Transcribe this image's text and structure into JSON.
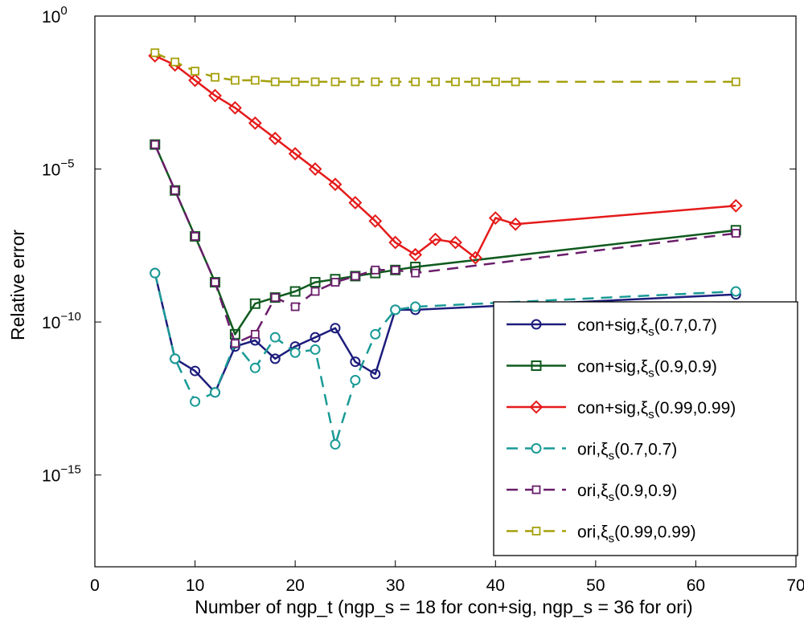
{
  "chart_data": {
    "type": "line",
    "title": "",
    "xlabel": "Number of ngp_t (ngp_s = 18 for con+sig, ngp_s = 36 for ori)",
    "ylabel": "Relative error",
    "xlim": [
      0,
      70
    ],
    "ylim_log10": [
      -18,
      0
    ],
    "yscale": "log",
    "x_ticks": [
      0,
      10,
      20,
      30,
      40,
      50,
      60,
      70
    ],
    "x_tick_labels": [
      "0",
      "10",
      "20",
      "30",
      "40",
      "50",
      "60",
      "70"
    ],
    "y_ticks_log10": [
      0,
      -5,
      -10,
      -15
    ],
    "y_tick_base": "10",
    "y_tick_exponents": [
      "0",
      "−5",
      "−10",
      "−15"
    ],
    "legend_position": "bottom-right",
    "series": [
      {
        "name_main": "con+sig,ξ",
        "name_sub": "s",
        "name_tail": "(0.7,0.7)",
        "color": "#1c1c7c",
        "line_style": "solid",
        "marker": "circle",
        "x": [
          6,
          8,
          10,
          12,
          14,
          16,
          18,
          20,
          22,
          24,
          26,
          28,
          30,
          32,
          64
        ],
        "log10_y": [
          -8.4,
          -11.2,
          -11.6,
          -12.3,
          -10.8,
          -10.6,
          -11.2,
          -10.8,
          -10.5,
          -10.2,
          -11.3,
          -11.7,
          -9.6,
          -9.6,
          -9.1
        ]
      },
      {
        "name_main": "con+sig,ξ",
        "name_sub": "s",
        "name_tail": "(0.9,0.9)",
        "color": "#0f5a1e",
        "line_style": "solid",
        "marker": "square",
        "x": [
          6,
          8,
          10,
          12,
          14,
          16,
          18,
          20,
          22,
          24,
          26,
          28,
          30,
          32,
          64
        ],
        "log10_y": [
          -4.2,
          -5.7,
          -7.2,
          -8.7,
          -10.4,
          -9.4,
          -9.2,
          -9.0,
          -8.7,
          -8.6,
          -8.5,
          -8.4,
          -8.3,
          -8.2,
          -7.0
        ]
      },
      {
        "name_main": "con+sig,ξ",
        "name_sub": "s",
        "name_tail": "(0.99,0.99)",
        "color": "#e51a1a",
        "line_style": "solid",
        "marker": "diamond",
        "x": [
          6,
          8,
          10,
          12,
          14,
          16,
          18,
          20,
          22,
          24,
          26,
          28,
          30,
          32,
          34,
          36,
          38,
          40,
          42,
          64
        ],
        "log10_y": [
          -1.3,
          -1.6,
          -2.1,
          -2.6,
          -3.0,
          -3.5,
          -4.0,
          -4.5,
          -5.0,
          -5.5,
          -6.1,
          -6.7,
          -7.4,
          -7.8,
          -7.3,
          -7.4,
          -7.9,
          -6.6,
          -6.8,
          -6.2
        ]
      },
      {
        "name_main": "ori,ξ",
        "name_sub": "s",
        "name_tail": "(0.7,0.7)",
        "color": "#1a9a96",
        "line_style": "dashed",
        "marker": "circle-open",
        "x": [
          6,
          8,
          10,
          12,
          14,
          16,
          18,
          20,
          22,
          24,
          26,
          28,
          30,
          32,
          64
        ],
        "log10_y": [
          -8.4,
          -11.2,
          -12.6,
          -12.3,
          -10.7,
          -11.5,
          -10.5,
          -11.0,
          -10.9,
          -14.0,
          -11.9,
          -10.4,
          -9.6,
          -9.5,
          -9.0
        ]
      },
      {
        "name_main": "ori,ξ",
        "name_sub": "s",
        "name_tail": "(0.9,0.9)",
        "color": "#6a1d6a",
        "line_style": "dashed",
        "marker": "square-open",
        "x": [
          6,
          8,
          10,
          12,
          14,
          16,
          18,
          20,
          22,
          24,
          26,
          28,
          30,
          32,
          64
        ],
        "log10_y": [
          -4.2,
          -5.7,
          -7.2,
          -8.7,
          -10.7,
          -10.4,
          -9.2,
          -9.5,
          -9.0,
          -8.7,
          -8.5,
          -8.3,
          -8.3,
          -8.4,
          -7.1
        ]
      },
      {
        "name_main": "ori,ξ",
        "name_sub": "s",
        "name_tail": "(0.99,0.99)",
        "color": "#a5a00c",
        "line_style": "dashed",
        "marker": "square-open",
        "x": [
          6,
          8,
          10,
          12,
          14,
          16,
          18,
          20,
          22,
          24,
          26,
          28,
          30,
          32,
          34,
          36,
          38,
          40,
          42,
          64
        ],
        "log10_y": [
          -1.2,
          -1.5,
          -1.8,
          -2.0,
          -2.1,
          -2.1,
          -2.15,
          -2.15,
          -2.15,
          -2.15,
          -2.15,
          -2.15,
          -2.15,
          -2.15,
          -2.15,
          -2.15,
          -2.15,
          -2.15,
          -2.15,
          -2.15
        ]
      }
    ]
  }
}
